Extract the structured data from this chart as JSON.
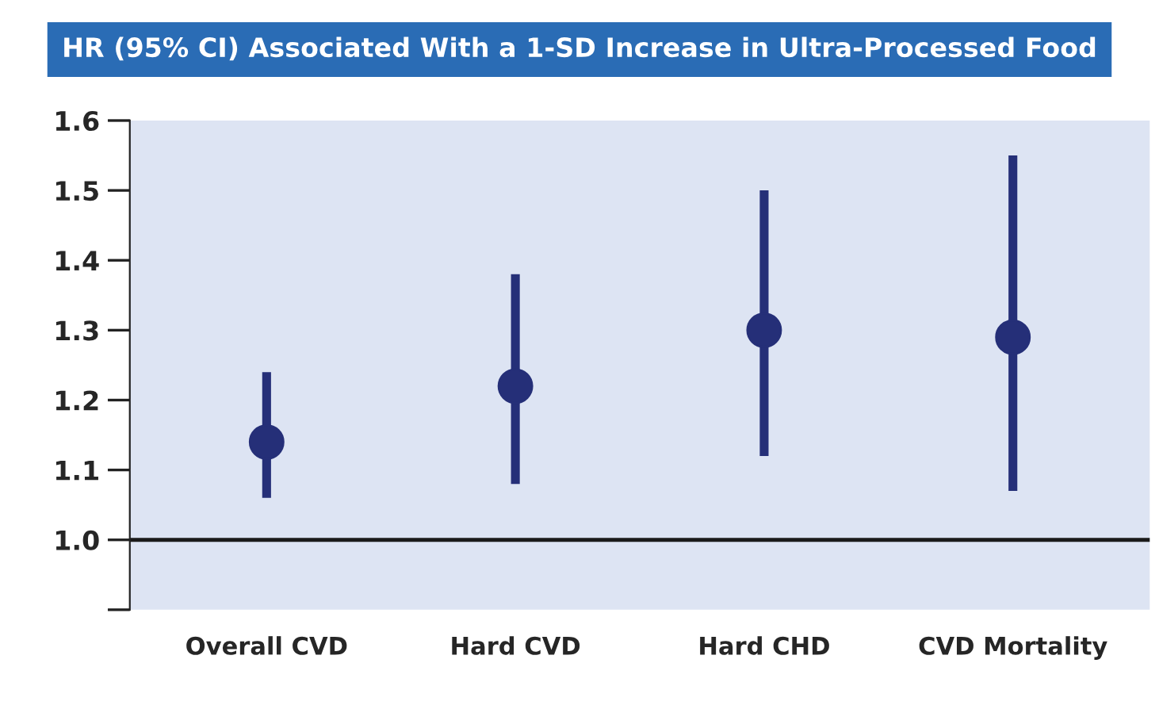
{
  "chart_data": {
    "type": "scatter",
    "title": "HR (95% CI) Associated With a 1-SD Increase in Ultra-Processed Food",
    "categories": [
      "Overall CVD",
      "Hard CVD",
      "Hard CHD",
      "CVD Mortality"
    ],
    "series": [
      {
        "color": "#252f78",
        "values": [
          1.14,
          1.22,
          1.3,
          1.29
        ],
        "errors": [
          [
            1.06,
            1.24
          ],
          [
            1.08,
            1.38
          ],
          [
            1.12,
            1.5
          ],
          [
            1.07,
            1.55
          ]
        ]
      }
    ],
    "ylim": [
      0.9,
      1.6
    ],
    "yticks": [
      {
        "value": 0.9,
        "label": null
      },
      "1.0",
      1.1,
      1.2,
      1.3,
      1.4,
      1.5,
      1.6
    ],
    "ref_lines": [
      {
        "axis": "y",
        "value": 1.0,
        "color": "#1a1a1a",
        "line_style": "solid"
      }
    ],
    "grid": false,
    "legend": false,
    "marker": "circle"
  }
}
